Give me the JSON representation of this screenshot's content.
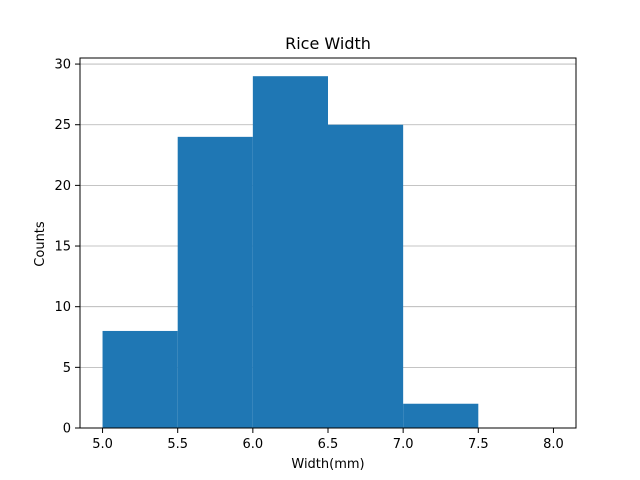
{
  "chart_data": {
    "type": "bar",
    "title": "Rice Width",
    "xlabel": "Width(mm)",
    "ylabel": "Counts",
    "bins": [
      {
        "start": 5.0,
        "end": 5.5,
        "count": 8
      },
      {
        "start": 5.5,
        "end": 6.0,
        "count": 24
      },
      {
        "start": 6.0,
        "end": 6.5,
        "count": 29
      },
      {
        "start": 6.5,
        "end": 7.0,
        "count": 25
      },
      {
        "start": 7.0,
        "end": 7.5,
        "count": 2
      },
      {
        "start": 7.5,
        "end": 8.0,
        "count": 0
      }
    ],
    "xlim": [
      4.85,
      8.15
    ],
    "ylim": [
      0,
      30.5
    ],
    "xticks": [
      "5.0",
      "5.5",
      "6.0",
      "6.5",
      "7.0",
      "7.5",
      "8.0"
    ],
    "yticks": [
      "0",
      "5",
      "10",
      "15",
      "20",
      "25",
      "30"
    ],
    "grid": "horizontal",
    "bar_color": "#1f77b4",
    "grid_color": "#b0b0b0",
    "legend": "none"
  }
}
